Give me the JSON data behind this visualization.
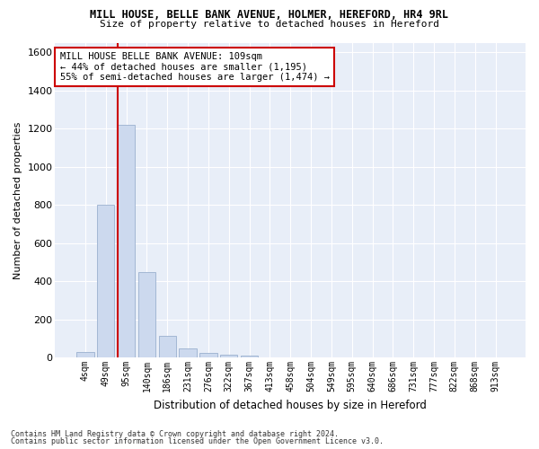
{
  "title1": "MILL HOUSE, BELLE BANK AVENUE, HOLMER, HEREFORD, HR4 9RL",
  "title2": "Size of property relative to detached houses in Hereford",
  "xlabel": "Distribution of detached houses by size in Hereford",
  "ylabel": "Number of detached properties",
  "categories": [
    "4sqm",
    "49sqm",
    "95sqm",
    "140sqm",
    "186sqm",
    "231sqm",
    "276sqm",
    "322sqm",
    "367sqm",
    "413sqm",
    "458sqm",
    "504sqm",
    "549sqm",
    "595sqm",
    "640sqm",
    "686sqm",
    "731sqm",
    "777sqm",
    "822sqm",
    "868sqm",
    "913sqm"
  ],
  "bar_heights": [
    28,
    800,
    1220,
    450,
    115,
    50,
    25,
    15,
    10,
    2,
    0,
    0,
    0,
    0,
    0,
    0,
    0,
    0,
    0,
    0,
    0
  ],
  "bar_color": "#ccd9ee",
  "bar_edge_color": "#9ab0cf",
  "vline_x_index": 2,
  "vline_color": "#cc0000",
  "annotation_text": "MILL HOUSE BELLE BANK AVENUE: 109sqm\n← 44% of detached houses are smaller (1,195)\n55% of semi-detached houses are larger (1,474) →",
  "annotation_box_color": "#ffffff",
  "annotation_box_edge": "#cc0000",
  "ylim": [
    0,
    1650
  ],
  "yticks": [
    0,
    200,
    400,
    600,
    800,
    1000,
    1200,
    1400,
    1600
  ],
  "footnote1": "Contains HM Land Registry data © Crown copyright and database right 2024.",
  "footnote2": "Contains public sector information licensed under the Open Government Licence v3.0.",
  "bg_color": "#e8eef8",
  "fig_bg": "#ffffff"
}
